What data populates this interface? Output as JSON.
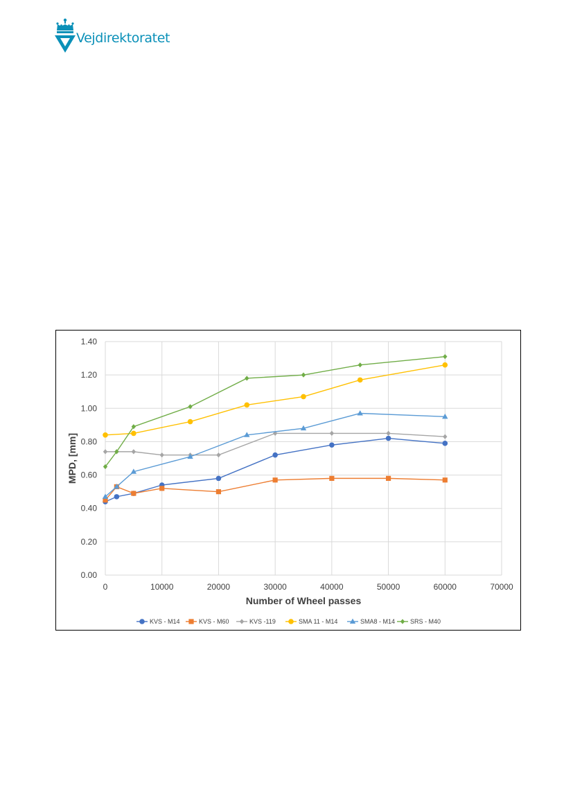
{
  "brand": {
    "name": "Vejdirektoratet",
    "color": "#0a90b8"
  },
  "chart_data": {
    "type": "line",
    "xlabel": "Number of Wheel passes",
    "ylabel": "MPD, [mm]",
    "xlim": [
      0,
      70000
    ],
    "ylim": [
      0,
      1.4
    ],
    "x_ticks": [
      0,
      10000,
      20000,
      30000,
      40000,
      50000,
      60000,
      70000
    ],
    "y_ticks": [
      "0.00",
      "0.20",
      "0.40",
      "0.60",
      "0.80",
      "1.00",
      "1.20",
      "1.40"
    ],
    "grid": true,
    "legend_position": "bottom",
    "series": [
      {
        "name": "KVS - M14",
        "color": "#4472c4",
        "marker": "circle",
        "x": [
          0,
          2000,
          5000,
          10000,
          20000,
          30000,
          40000,
          50000,
          60000
        ],
        "y": [
          0.44,
          0.47,
          0.49,
          0.54,
          0.58,
          0.72,
          0.78,
          0.82,
          0.79
        ]
      },
      {
        "name": "KVS - M60",
        "color": "#ed7d31",
        "marker": "square",
        "x": [
          0,
          2000,
          5000,
          10000,
          20000,
          30000,
          40000,
          50000,
          60000
        ],
        "y": [
          0.45,
          0.53,
          0.49,
          0.52,
          0.5,
          0.57,
          0.58,
          0.58,
          0.57
        ]
      },
      {
        "name": "KVS -119",
        "color": "#a5a5a5",
        "marker": "diamond",
        "x": [
          0,
          2000,
          5000,
          10000,
          15000,
          20000,
          30000,
          40000,
          50000,
          60000
        ],
        "y": [
          0.74,
          0.74,
          0.74,
          0.72,
          0.72,
          0.72,
          0.85,
          0.85,
          0.85,
          0.83
        ]
      },
      {
        "name": "SMA 11 - M14",
        "color": "#ffc000",
        "marker": "circle",
        "x": [
          0,
          5000,
          15000,
          25000,
          35000,
          45000,
          60000
        ],
        "y": [
          0.84,
          0.85,
          0.92,
          1.02,
          1.07,
          1.17,
          1.26
        ]
      },
      {
        "name": "SMA8 - M14",
        "color": "#5b9bd5",
        "marker": "triangle",
        "x": [
          0,
          2000,
          5000,
          15000,
          25000,
          35000,
          45000,
          60000
        ],
        "y": [
          0.47,
          0.53,
          0.62,
          0.71,
          0.84,
          0.88,
          0.97,
          0.95
        ]
      },
      {
        "name": "SRS - M40",
        "color": "#70ad47",
        "marker": "diamond",
        "x": [
          0,
          2000,
          5000,
          15000,
          25000,
          35000,
          45000,
          60000
        ],
        "y": [
          0.65,
          0.74,
          0.89,
          1.01,
          1.18,
          1.2,
          1.26,
          1.31
        ]
      }
    ]
  }
}
